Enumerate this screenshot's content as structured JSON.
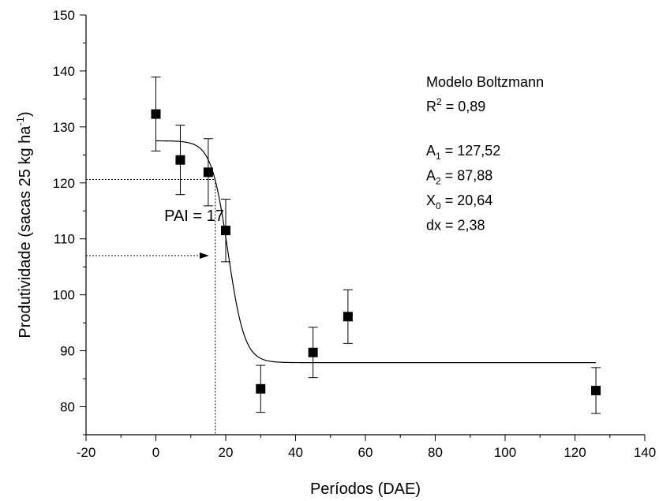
{
  "chart_data": {
    "type": "scatter",
    "xlabel": "Períodos (DAE)",
    "ylabel": {
      "text": "Produtividade (sacas 25 kg ha",
      "sup": "-1",
      "end": ")"
    },
    "x": [
      0,
      7,
      15,
      20,
      30,
      45,
      55,
      126
    ],
    "values": [
      132.3,
      124.1,
      121.9,
      111.5,
      83.2,
      89.7,
      96.1,
      82.9
    ],
    "errors": [
      6.6,
      6.2,
      6.0,
      5.6,
      4.2,
      4.5,
      4.8,
      4.1
    ],
    "color": "#000000",
    "xlim": [
      -20,
      140
    ],
    "xticks": [
      -20,
      0,
      20,
      40,
      60,
      80,
      100,
      120,
      140
    ],
    "xminor": [
      -10,
      10,
      30,
      50,
      70,
      90,
      110,
      130
    ],
    "ylim": [
      75,
      150
    ],
    "yticks": [
      80,
      90,
      100,
      110,
      120,
      130,
      140,
      150
    ],
    "yminor": [
      75,
      85,
      95,
      105,
      115,
      125,
      135,
      145
    ],
    "fit": {
      "model": "Modelo Boltzmann",
      "r2": {
        "symbol": "R",
        "sup": "2",
        "text": " = 0,89"
      },
      "params": [
        {
          "symbol": "A",
          "sub": "1",
          "text": " = 127,52",
          "value": 127.52
        },
        {
          "symbol": "A",
          "sub": "2",
          "text": " = 87,88",
          "value": 87.88
        },
        {
          "symbol": "X",
          "sub": "0",
          "text": " = 20,64",
          "value": 20.64
        },
        {
          "symbol": "dx",
          "text": " = 2,38",
          "value": 2.38
        }
      ]
    },
    "pai": {
      "label": "PAI = 17",
      "x": 17,
      "yield": 120.6,
      "arrow_y": 107,
      "arrow_x": 15
    }
  }
}
